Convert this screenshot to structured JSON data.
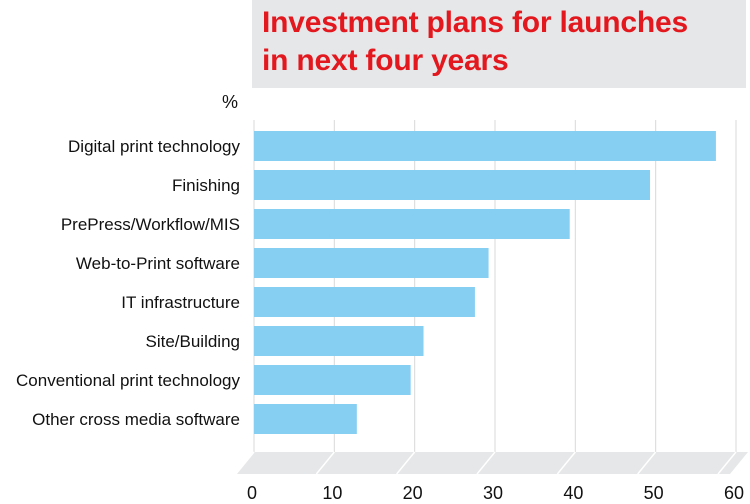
{
  "title": "Investment plans for launches\nin next four years",
  "unit_label": "%",
  "colors": {
    "bar": "#87cef3",
    "title": "#e3181f",
    "title_bg": "#e6e7e8",
    "floor": "#e6e7e8",
    "gridline": "#d9d9d9"
  },
  "chart_data": {
    "type": "bar",
    "orientation": "horizontal",
    "title": "Investment plans for launches in next four years",
    "xlabel": "",
    "ylabel": "%",
    "categories": [
      "Digital print technology",
      "Finishing",
      "PrePress/Workflow/MIS",
      "Web-to-Print software",
      "IT infrastructure",
      "Site/Building",
      "Conventional print technology",
      "Other cross media software"
    ],
    "values": [
      57.5,
      49.3,
      39.3,
      29.2,
      27.5,
      21.1,
      19.5,
      12.8
    ],
    "xlim": [
      0,
      60
    ],
    "xticks": [
      "0",
      "10",
      "20",
      "30",
      "40",
      "50",
      "60"
    ],
    "grid": true
  }
}
